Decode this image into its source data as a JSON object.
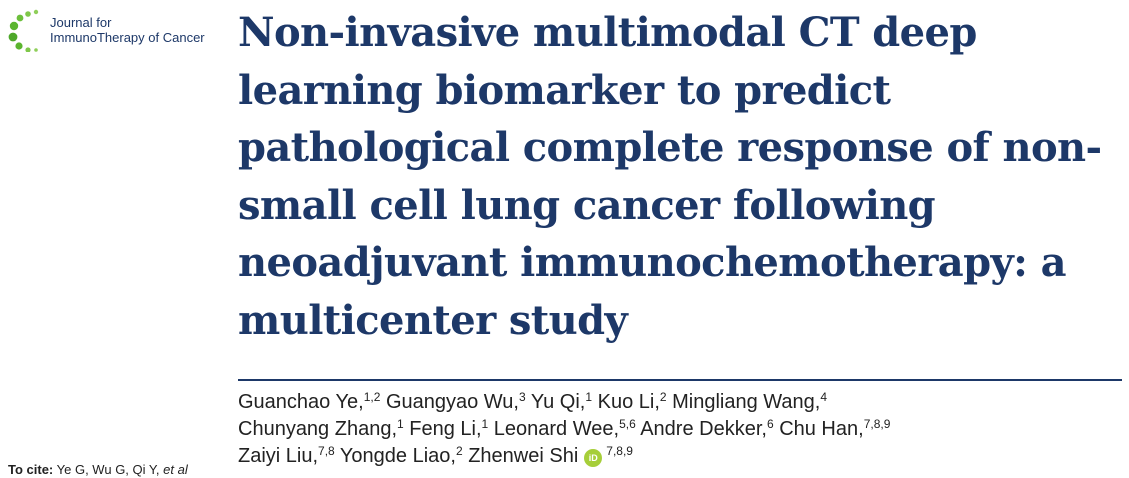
{
  "journal": {
    "name_line1": "Journal for",
    "name_line2": "ImmunoTherapy of Cancer",
    "brand_color": "#1d3868",
    "accent_color": "#6cbf3b"
  },
  "article": {
    "title_lines": [
      "Non-invasive multimodal CT deep",
      "learning biomarker to predict",
      "pathological complete response of non-",
      "small cell lung cancer following",
      "neoadjuvant immunochemotherapy: a",
      "multicenter study"
    ]
  },
  "authors": [
    {
      "name": "Guanchao Ye,",
      "affil": "1,2"
    },
    {
      "name": "Guangyao Wu,",
      "affil": "3"
    },
    {
      "name": "Yu Qi,",
      "affil": "1"
    },
    {
      "name": "Kuo Li,",
      "affil": "2"
    },
    {
      "name": "Mingliang Wang,",
      "affil": "4"
    },
    {
      "name": "Chunyang Zhang,",
      "affil": "1"
    },
    {
      "name": "Feng Li,",
      "affil": "1"
    },
    {
      "name": "Leonard Wee,",
      "affil": "5,6"
    },
    {
      "name": "Andre Dekker,",
      "affil": "6"
    },
    {
      "name": "Chu Han,",
      "affil": "7,8,9"
    },
    {
      "name": "Zaiyi Liu,",
      "affil": "7,8"
    },
    {
      "name": "Yongde Liao,",
      "affil": "2"
    },
    {
      "name": "Zhenwei Shi",
      "affil": "7,8,9",
      "orcid_label": "iD"
    }
  ],
  "cite": {
    "label": "To cite:",
    "text": "Ye G, Wu G, Qi Y,",
    "etal": "et al"
  }
}
